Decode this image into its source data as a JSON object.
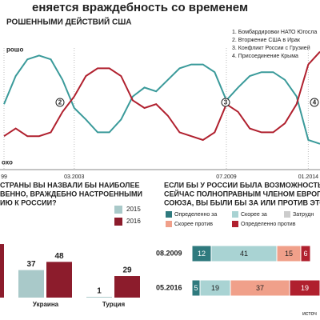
{
  "header": {
    "title": "еняется враждебность со временем",
    "subtitle": "РОШЕННЫМИ ДЕЙСТВИЙ США"
  },
  "notes": [
    "1. Бомбардировки НАТО Югосла",
    "2. Вторжение США в Ирак",
    "3. Конфликт России с Грузией",
    "4. Присоединение Крыма"
  ],
  "source": "источ",
  "chart_data": [
    {
      "type": "line",
      "categories": [
        "99",
        null,
        null,
        null,
        null,
        null,
        "03.2003",
        null,
        null,
        null,
        null,
        null,
        null,
        null,
        null,
        null,
        null,
        null,
        null,
        "07.2009",
        null,
        null,
        null,
        null,
        null,
        null,
        "01.2014",
        null
      ],
      "series": [
        {
          "color": "#3a9a9a",
          "values": [
            53,
            75,
            88,
            91,
            88,
            72,
            50,
            41,
            31,
            31,
            41,
            59,
            66,
            63,
            72,
            81,
            84,
            84,
            78,
            56,
            66,
            75,
            78,
            78,
            72,
            59,
            25,
            22
          ]
        },
        {
          "color": "#b0202e",
          "values": [
            28,
            34,
            28,
            28,
            31,
            47,
            59,
            75,
            81,
            81,
            75,
            56,
            50,
            53,
            44,
            31,
            28,
            25,
            31,
            53,
            47,
            34,
            31,
            31,
            38,
            53,
            84,
            94
          ]
        }
      ],
      "annotations": [
        "рошо",
        "охо",
        "2",
        "3",
        "4"
      ]
    },
    {
      "type": "bar",
      "title": [
        "СТРАНЫ ВЫ НАЗВАЛИ БЫ НАИБОЛЕЕ",
        "ВЕННО, ВРАЖДЕБНО НАСТРОЕННЫМИ",
        "ИЮ К РОССИИ?"
      ],
      "categories": [
        null,
        "Украина",
        "Турция"
      ],
      "series": [
        {
          "name": "2015",
          "color": "#a9c9c9",
          "values": [
            null,
            37,
            1
          ]
        },
        {
          "name": "2016",
          "color": "#8c1c2c",
          "values": [
            72,
            48,
            29
          ]
        }
      ]
    },
    {
      "type": "bar",
      "horizontal": true,
      "stacked": true,
      "title": [
        "ЕСЛИ БЫ У РОССИИ БЫЛА ВОЗМОЖНОСТЬ СТАТЬ",
        "СЕЙЧАС ПОЛНОПРАВНЫМ ЧЛЕНОМ ЕВРОПЕЙСКОГО",
        "СОЮЗА, ВЫ БЫЛИ БЫ ЗА ИЛИ ПРОТИВ ЭТОГО?"
      ],
      "categories": [
        "08.2009",
        "05.2016"
      ],
      "series": [
        {
          "name": "Определенно за",
          "color": "#2f7a7e",
          "values": [
            12,
            5
          ]
        },
        {
          "name": "Скорее за",
          "color": "#a9d3d3",
          "values": [
            41,
            19
          ]
        },
        {
          "name": "Скорее против",
          "color": "#f0a08a",
          "values": [
            15,
            37
          ]
        },
        {
          "name": "Определенно против",
          "color": "#b0202e",
          "values": [
            6,
            19
          ]
        },
        {
          "name": "Затрудн",
          "color": "#cccccc",
          "values": [
            null,
            null
          ]
        }
      ]
    }
  ]
}
